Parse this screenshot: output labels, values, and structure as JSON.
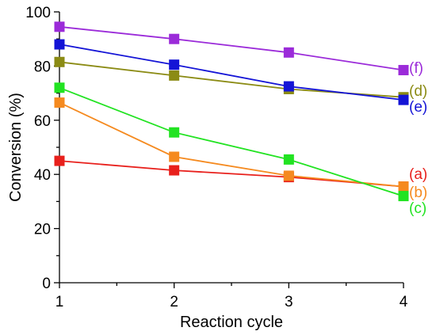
{
  "chart_data": {
    "type": "line",
    "xlabel": "Reaction cycle",
    "ylabel": "Conversion (%)",
    "x": [
      1,
      2,
      3,
      4
    ],
    "xlim": [
      1,
      4
    ],
    "ylim": [
      0,
      100
    ],
    "x_ticks": [
      "1",
      "2",
      "3",
      "4"
    ],
    "y_ticks": [
      "0",
      "20",
      "40",
      "60",
      "80",
      "100"
    ],
    "grid": false,
    "marker": "square",
    "series": [
      {
        "name": "(a)",
        "color": "#e8201c",
        "values": [
          45.0,
          41.5,
          39.0,
          35.5
        ]
      },
      {
        "name": "(b)",
        "color": "#f58a1f",
        "values": [
          66.5,
          46.5,
          39.5,
          35.5
        ]
      },
      {
        "name": "(c)",
        "color": "#22e322",
        "values": [
          72.0,
          55.5,
          45.5,
          32.0
        ]
      },
      {
        "name": "(d)",
        "color": "#8b8b14",
        "values": [
          81.5,
          76.5,
          71.5,
          68.5
        ]
      },
      {
        "name": "(e)",
        "color": "#1414d6",
        "values": [
          88.0,
          80.5,
          72.5,
          67.5
        ]
      },
      {
        "name": "(f)",
        "color": "#9b2bd9",
        "values": [
          94.5,
          90.0,
          85.0,
          78.5
        ]
      }
    ]
  }
}
